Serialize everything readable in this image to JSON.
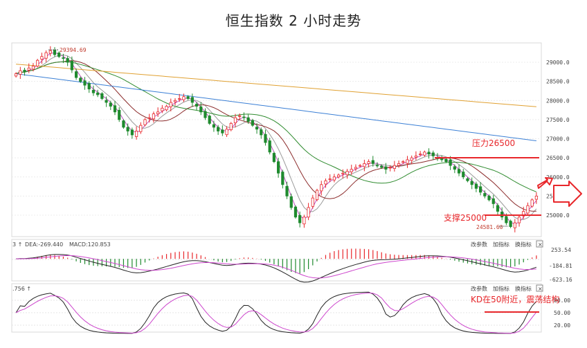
{
  "title": "恒生指数 2 小时走势",
  "colors": {
    "up": "#e8262a",
    "down": "#1f8a2e",
    "annotation": "#e8262a",
    "ma5": "#c050c0",
    "ma10": "#999999",
    "ma20": "#8b2a2a",
    "ma60": "#2e8b2e",
    "ma120": "#3a7fd5",
    "ma250": "#e0a030",
    "dif": "#222222",
    "dea": "#cc44cc",
    "k": "#222222",
    "d": "#cc44cc"
  },
  "price_axis": {
    "ticks": [
      "29000.0",
      "28500.0",
      "28000.0",
      "27500.0",
      "27000.0",
      "26500.0",
      "26000.0",
      "25500.0",
      "25000.0"
    ]
  },
  "labels": {
    "high_marker": "29394.69",
    "low_marker": "24581.60",
    "resistance": "压力26500",
    "support": "支撑25000",
    "kd_note": "KD在50附近，震荡结构"
  },
  "macd_panel": {
    "header_prefix": "3 ↑",
    "dea_label": "DEA:-269.440",
    "macd_label": "MACD:120.853",
    "ticks": [
      "253.54",
      "-184.81",
      "-623.16"
    ],
    "buttons": [
      "改参数",
      "加指标",
      "换指标"
    ],
    "close": "×"
  },
  "kd_panel": {
    "header_label": ".756 ↑",
    "ticks": [
      "80.00",
      "50.00",
      "20.00"
    ],
    "buttons": [
      "改参数",
      "加指标",
      "换指标"
    ],
    "close": "×"
  },
  "chart_data": {
    "type": "candlestick",
    "interval": "2 小时",
    "price_range": [
      24500,
      29500
    ],
    "high": 29394.69,
    "low": 24581.6,
    "resistance_level": 26500,
    "support_level": 25000,
    "closes": [
      28700,
      28780,
      28750,
      28850,
      28900,
      29050,
      29150,
      29250,
      29300,
      29200,
      29150,
      29100,
      29000,
      28800,
      28600,
      28500,
      28400,
      28300,
      28200,
      28150,
      28050,
      27950,
      27850,
      27700,
      27500,
      27300,
      27200,
      27100,
      27200,
      27350,
      27500,
      27550,
      27650,
      27700,
      27800,
      27850,
      27950,
      28000,
      28050,
      28100,
      28050,
      27950,
      27850,
      27700,
      27550,
      27400,
      27300,
      27200,
      27150,
      27250,
      27400,
      27550,
      27600,
      27550,
      27450,
      27350,
      27250,
      27100,
      26900,
      26650,
      26400,
      26100,
      25800,
      25500,
      25200,
      24950,
      24800,
      24950,
      25200,
      25450,
      25650,
      25800,
      25900,
      25950,
      26000,
      26050,
      26100,
      26150,
      26200,
      26250,
      26300,
      26350,
      26400,
      26350,
      26300,
      26250,
      26200,
      26250,
      26300,
      26350,
      26400,
      26450,
      26500,
      26550,
      26600,
      26650,
      26600,
      26550,
      26500,
      26450,
      26400,
      26300,
      26200,
      26100,
      26000,
      25900,
      25800,
      25700,
      25600,
      25500,
      25400,
      25300,
      25100,
      24950,
      24800,
      24700,
      24800,
      24950,
      25100,
      25250,
      25400,
      25500
    ],
    "macd_range": [
      -623.16,
      253.54
    ],
    "kd_range": [
      20,
      80
    ]
  }
}
